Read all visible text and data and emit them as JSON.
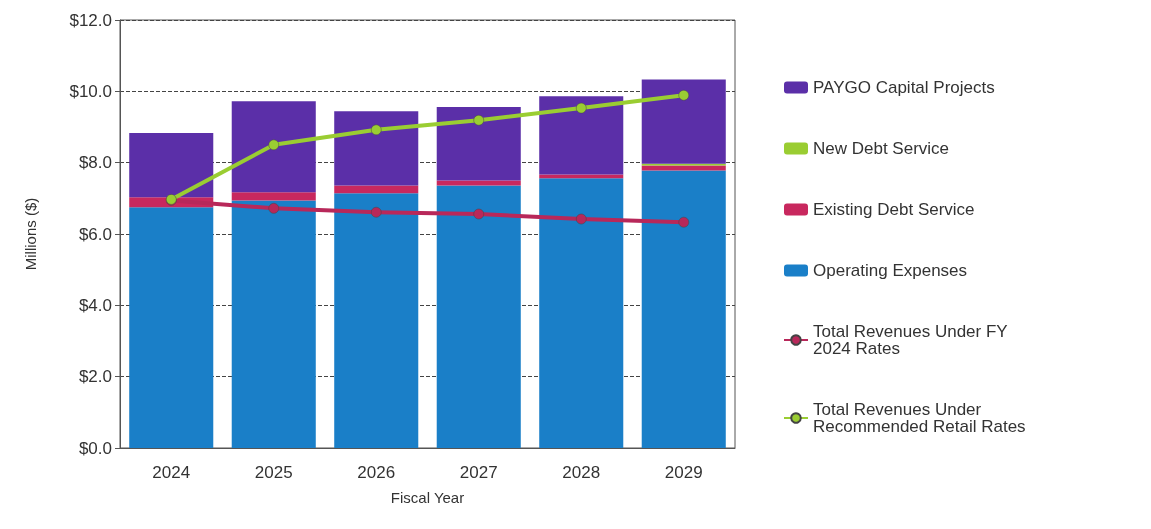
{
  "chart_data": {
    "type": "bar",
    "stacked": true,
    "xlabel": "Fiscal Year",
    "ylabel": "Millions ($)",
    "categories": [
      "2024",
      "2025",
      "2026",
      "2027",
      "2028",
      "2029"
    ],
    "series": [
      {
        "name": "Operating Expenses",
        "color": "#1a7fc8",
        "values": [
          6.75,
          6.94,
          7.14,
          7.36,
          7.56,
          7.78
        ]
      },
      {
        "name": "Existing Debt Service",
        "color": "#c8285e",
        "values": [
          0.28,
          0.23,
          0.22,
          0.14,
          0.11,
          0.14
        ]
      },
      {
        "name": "New Debt Service",
        "color": "#9acd32",
        "values": [
          0,
          0,
          0,
          0,
          0,
          0.05
        ]
      },
      {
        "name": "PAYGO Capital Projects",
        "color": "#5b2fa8",
        "values": [
          1.8,
          2.55,
          2.08,
          2.06,
          2.19,
          2.36
        ]
      },
      {
        "name": "Total Revenues Under FY 2024 Rates",
        "type": "line",
        "color": "#b8285a",
        "values": [
          6.94,
          6.72,
          6.61,
          6.56,
          6.42,
          6.33
        ]
      },
      {
        "name": "Total Revenues Under Recommended Retail Rates",
        "type": "line",
        "color": "#9acd32",
        "values": [
          6.97,
          8.5,
          8.92,
          9.19,
          9.53,
          9.89
        ]
      }
    ],
    "ylim": [
      0,
      12
    ],
    "yticks": [
      {
        "value": 0,
        "label": "$0.0"
      },
      {
        "value": 2,
        "label": "$2.0"
      },
      {
        "value": 4,
        "label": "$4.0"
      },
      {
        "value": 6,
        "label": "$6.0"
      },
      {
        "value": 8,
        "label": "$8.0"
      },
      {
        "value": 10,
        "label": "$10.0"
      },
      {
        "value": 12,
        "label": "$12.0"
      }
    ],
    "grid": "y",
    "legend": "right",
    "marker": "circle",
    "line_style": "solid"
  }
}
